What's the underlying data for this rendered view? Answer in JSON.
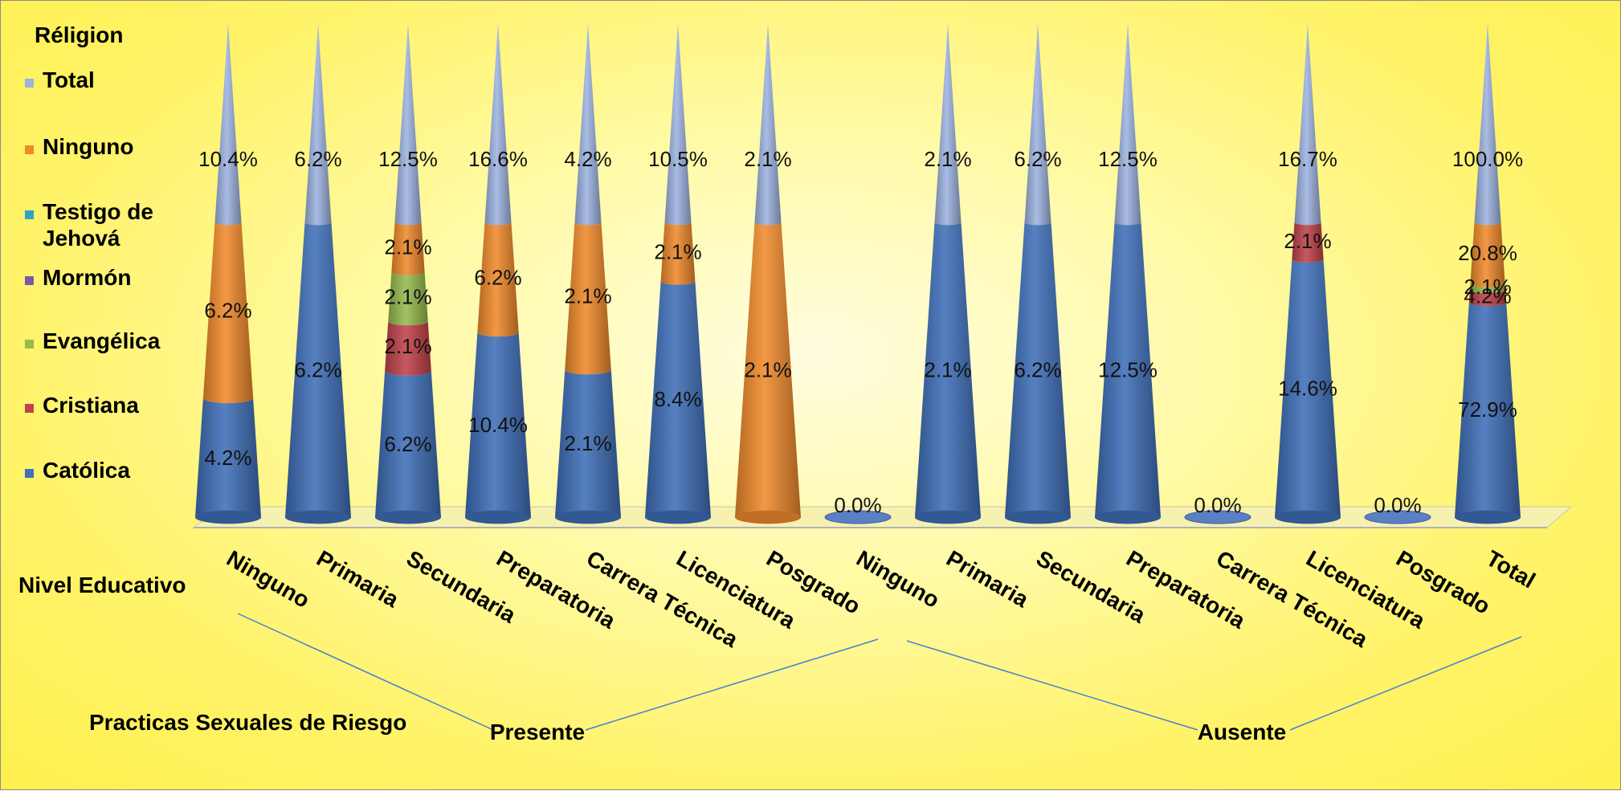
{
  "chart_data": {
    "type": "bar",
    "legend_title": "Réligion",
    "legend_position": "left",
    "colors": {
      "Total": "#9db3e0",
      "Ninguno": "#f08a2c",
      "Testigo de Jehová": "#2ea2c7",
      "Mormón": "#7a5aa6",
      "Evangélica": "#97bb4e",
      "Cristiana": "#c0424a",
      "Católica": "#3f6fb8"
    },
    "legend": [
      "Total",
      "Ninguno",
      "Testigo de Jehová",
      "Mormón",
      "Evangélica",
      "Cristiana",
      "Católica"
    ],
    "x_axis_title": "Nivel Educativo",
    "group_axis_title": "Practicas Sexuales de Riesgo",
    "groups": [
      {
        "name": "Presente",
        "categories": [
          "Ninguno",
          "Primaria",
          "Secundaria",
          "Preparatoria",
          "Carrera Técnica",
          "Licenciatura",
          "Posgrado"
        ]
      },
      {
        "name": "Ausente",
        "categories": [
          "Ninguno",
          "Primaria",
          "Secundaria",
          "Preparatoria",
          "Carrera Técnica",
          "Licenciatura",
          "Posgrado",
          "Total"
        ]
      }
    ],
    "columns": [
      {
        "group": "Presente",
        "category": "Ninguno",
        "total": "10.4%",
        "segments": [
          {
            "series": "Católica",
            "value": 4.2,
            "label": "4.2%"
          },
          {
            "series": "Ninguno",
            "value": 6.2,
            "label": "6.2%"
          }
        ]
      },
      {
        "group": "Presente",
        "category": "Primaria",
        "total": "6.2%",
        "segments": [
          {
            "series": "Católica",
            "value": 6.2,
            "label": "6.2%"
          }
        ]
      },
      {
        "group": "Presente",
        "category": "Secundaria",
        "total": "12.5%",
        "segments": [
          {
            "series": "Católica",
            "value": 6.2,
            "label": "6.2%"
          },
          {
            "series": "Cristiana",
            "value": 2.1,
            "label": "2.1%"
          },
          {
            "series": "Evangélica",
            "value": 2.1,
            "label": "2.1%"
          },
          {
            "series": "Ninguno",
            "value": 2.1,
            "label": "2.1%"
          }
        ]
      },
      {
        "group": "Presente",
        "category": "Preparatoria",
        "total": "16.6%",
        "segments": [
          {
            "series": "Católica",
            "value": 10.4,
            "label": "10.4%"
          },
          {
            "series": "Ninguno",
            "value": 6.2,
            "label": "6.2%"
          }
        ]
      },
      {
        "group": "Presente",
        "category": "Carrera Técnica",
        "total": "4.2%",
        "segments": [
          {
            "series": "Católica",
            "value": 2.1,
            "label": "2.1%"
          },
          {
            "series": "Ninguno",
            "value": 2.1,
            "label": "2.1%"
          }
        ]
      },
      {
        "group": "Presente",
        "category": "Licenciatura",
        "total": "10.5%",
        "segments": [
          {
            "series": "Católica",
            "value": 8.4,
            "label": "8.4%"
          },
          {
            "series": "Ninguno",
            "value": 2.1,
            "label": "2.1%"
          }
        ]
      },
      {
        "group": "Presente",
        "category": "Posgrado",
        "total": "2.1%",
        "segments": [
          {
            "series": "Ninguno",
            "value": 2.1,
            "label": "2.1%"
          }
        ]
      },
      {
        "group": "Ausente",
        "category": "Ninguno",
        "total": "",
        "empty_label": "0.0%",
        "segments": []
      },
      {
        "group": "Ausente",
        "category": "Primaria",
        "total": "2.1%",
        "segments": [
          {
            "series": "Católica",
            "value": 2.1,
            "label": "2.1%"
          }
        ]
      },
      {
        "group": "Ausente",
        "category": "Secundaria",
        "total": "6.2%",
        "segments": [
          {
            "series": "Católica",
            "value": 6.2,
            "label": "6.2%"
          }
        ]
      },
      {
        "group": "Ausente",
        "category": "Preparatoria",
        "total": "12.5%",
        "segments": [
          {
            "series": "Católica",
            "value": 12.5,
            "label": "12.5%"
          }
        ]
      },
      {
        "group": "Ausente",
        "category": "Carrera Técnica",
        "total": "",
        "empty_label": "0.0%",
        "segments": []
      },
      {
        "group": "Ausente",
        "category": "Licenciatura",
        "total": "16.7%",
        "segments": [
          {
            "series": "Católica",
            "value": 14.6,
            "label": "14.6%"
          },
          {
            "series": "Cristiana",
            "value": 2.1,
            "label": "2.1%"
          }
        ]
      },
      {
        "group": "Ausente",
        "category": "Posgrado",
        "total": "",
        "empty_label": "0.0%",
        "segments": []
      },
      {
        "group": "Ausente",
        "category": "Total",
        "total": "100.0%",
        "segments": [
          {
            "series": "Católica",
            "value": 72.9,
            "label": "72.9%"
          },
          {
            "series": "Cristiana",
            "value": 4.2,
            "label": "4.2%"
          },
          {
            "series": "Evangélica",
            "value": 2.1,
            "label": "2.1%"
          },
          {
            "series": "Ninguno",
            "value": 20.8,
            "label": "20.8%"
          }
        ]
      }
    ]
  }
}
